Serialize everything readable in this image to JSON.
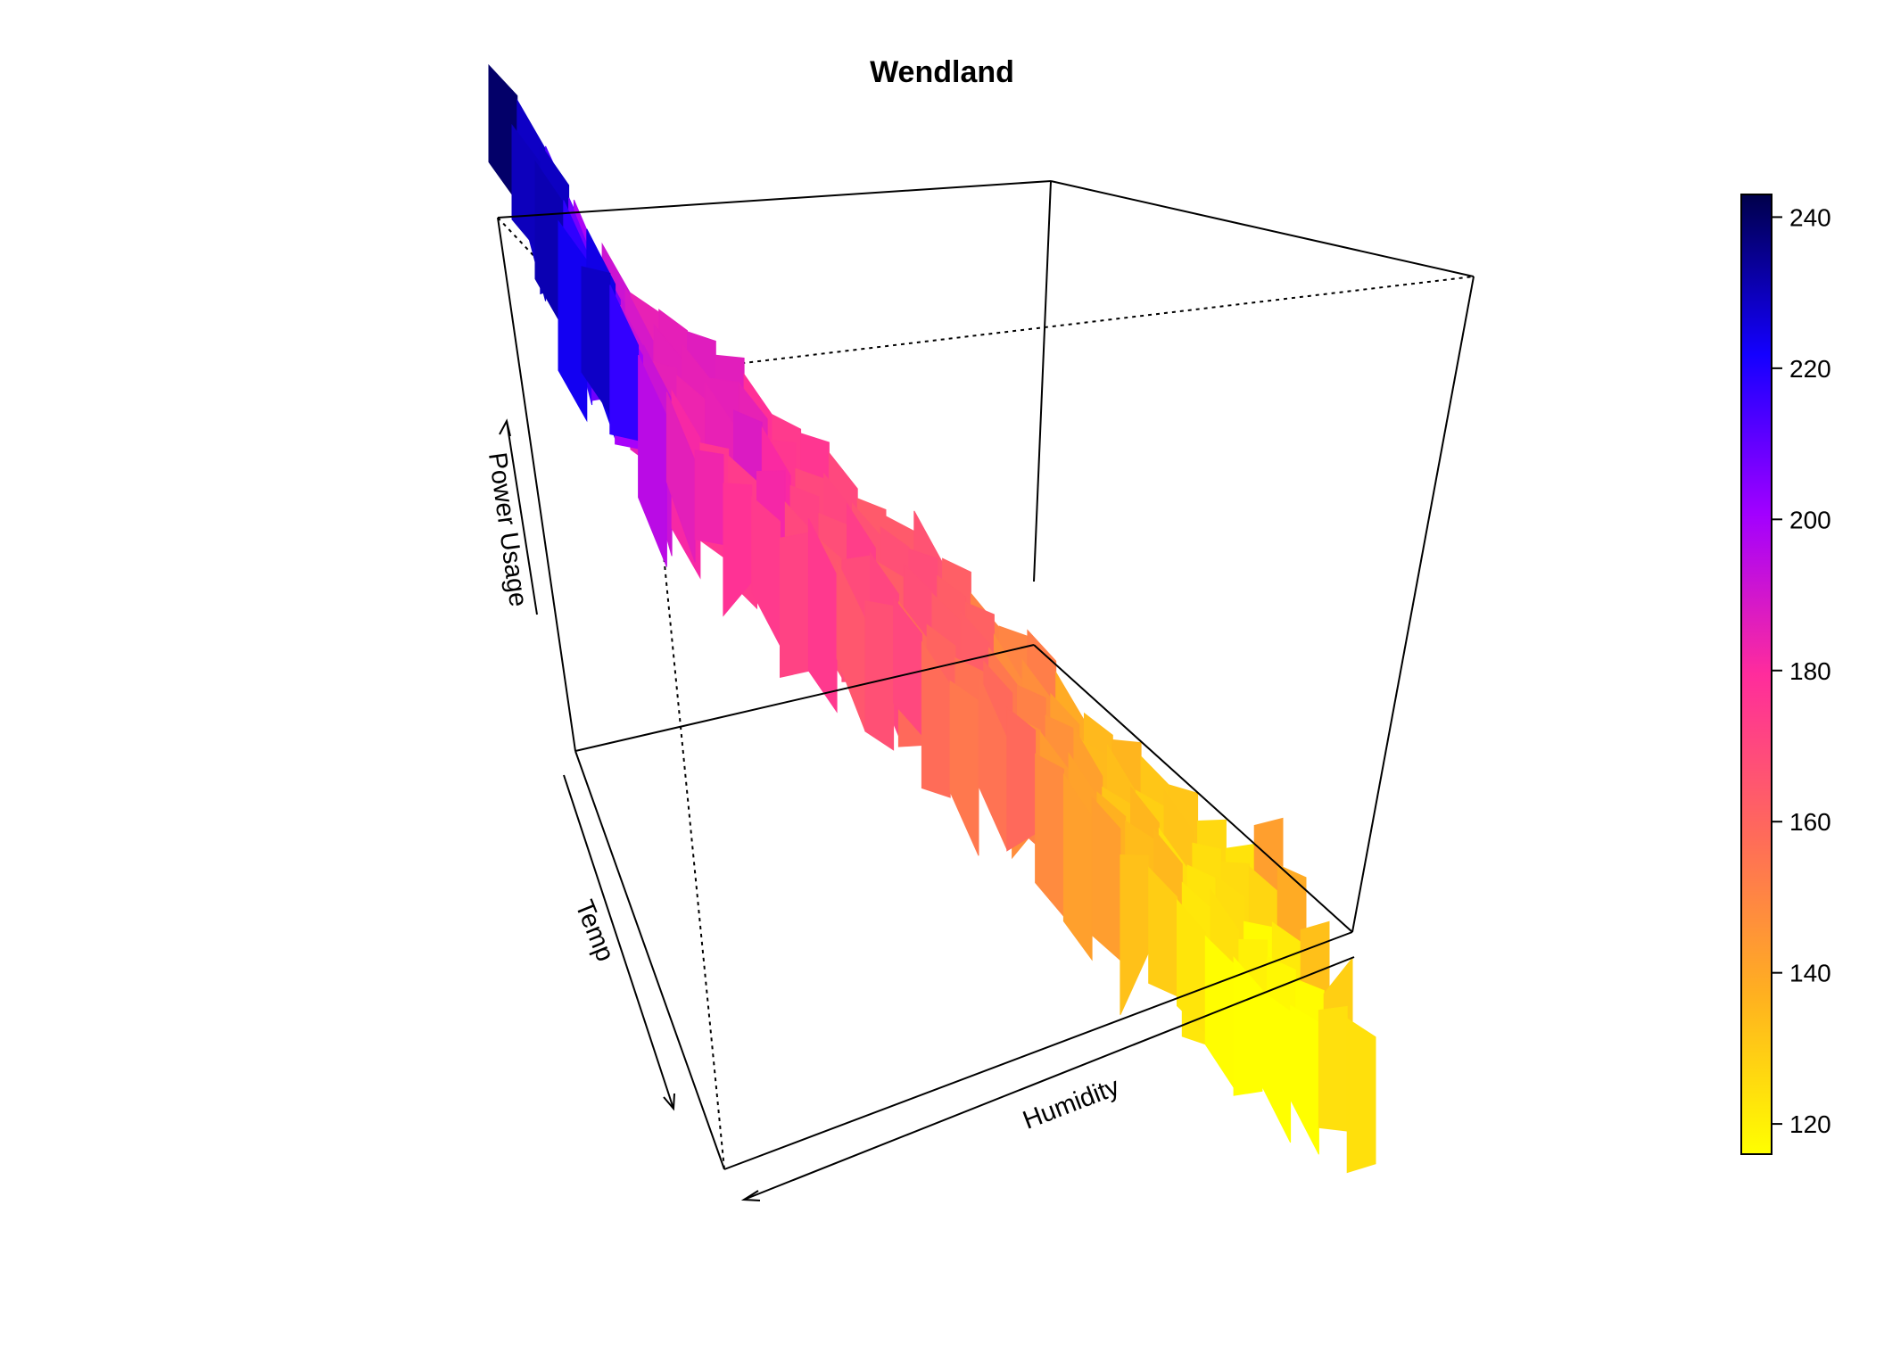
{
  "chart_data": {
    "type": "surface3d",
    "title": "Wendland",
    "xlabel": "Humidity",
    "ylabel": "Temp",
    "zlabel": "Power Usage",
    "zlim": [
      116,
      243
    ],
    "colorbar": {
      "position": "right",
      "min": 116,
      "max": 243,
      "ticks": [
        "120",
        "140",
        "160",
        "180",
        "200",
        "220",
        "240"
      ],
      "colors": [
        "#ffff00",
        "#ffb020",
        "#ff6a5a",
        "#ff2c9c",
        "#a200ff",
        "#1400ff",
        "#00004a"
      ]
    },
    "surface_profile": {
      "description_axis": "value along ridge from back-left to front-right",
      "values": [
        242,
        236,
        222,
        206,
        195,
        190,
        192,
        186,
        188,
        182,
        176,
        178,
        172,
        168,
        170,
        166,
        162,
        158,
        152,
        148,
        144,
        140,
        136,
        132,
        130,
        128,
        126,
        134,
        142
      ]
    }
  }
}
